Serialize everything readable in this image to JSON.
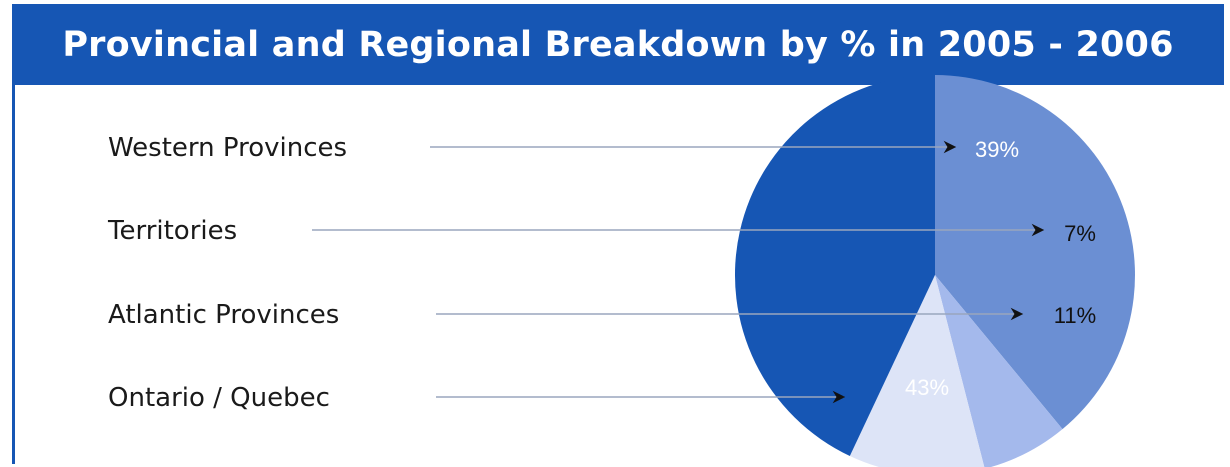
{
  "chart_data": {
    "type": "pie",
    "title": "Provincial and Regional Breakdown by % in 2005 - 2006",
    "slices": [
      {
        "name": "Western Provinces",
        "label": "39%",
        "value": 39,
        "color": "#6b8fd3"
      },
      {
        "name": "Territories",
        "label": "7%",
        "value": 7,
        "color": "#a4b9ec"
      },
      {
        "name": "Atlantic Provinces",
        "label": "11%",
        "value": 11,
        "color": "#dde4f7"
      },
      {
        "name": "Ontario / Quebec",
        "label": "43%",
        "value": 43,
        "color": "#1656b4"
      }
    ],
    "colors": {
      "header": "#1656b4",
      "title_text": "#ffffff",
      "leader_line": "#9aa6bd",
      "arrow": "#111111"
    }
  }
}
